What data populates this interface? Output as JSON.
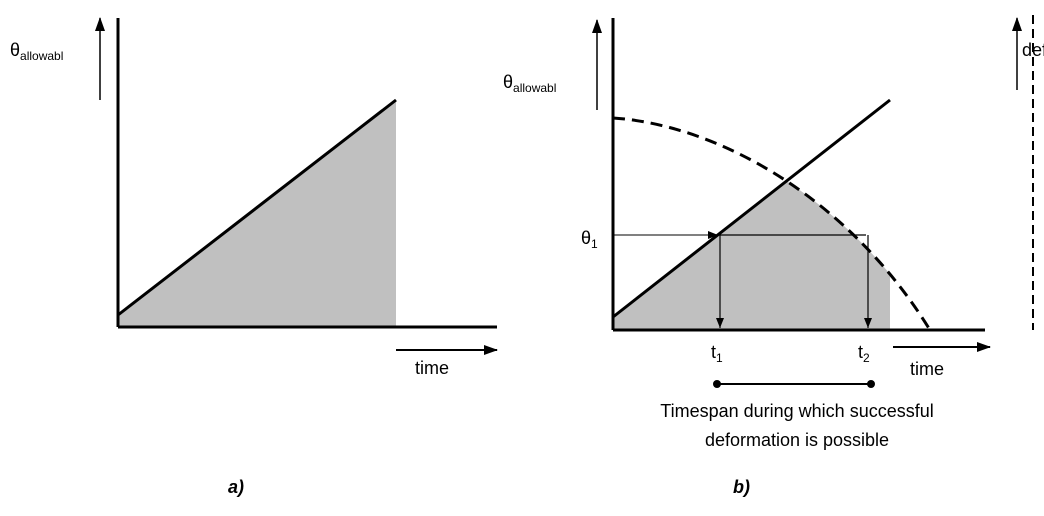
{
  "panels": [
    {
      "y_label": {
        "symbol": "θ",
        "subscript": "allowabl"
      },
      "x_label": "time",
      "caption": "a)"
    },
    {
      "y_label": {
        "symbol": "θ",
        "subscript": "allowabl"
      },
      "right_label": "def",
      "theta_mark": {
        "symbol": "θ",
        "subscript": "1"
      },
      "t1": {
        "symbol": "t",
        "subscript": "1"
      },
      "t2": {
        "symbol": "t",
        "subscript": "2"
      },
      "x_label": "time",
      "note": [
        "Timespan during which successful",
        "deformation is possible"
      ],
      "caption": "b)"
    }
  ]
}
